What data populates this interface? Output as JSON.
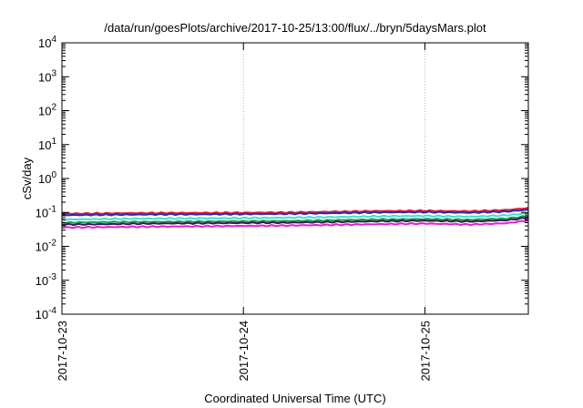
{
  "chart_data": {
    "type": "line",
    "title": "/data/run/goesPlots/archive/2017-10-25/13:00/flux/../bryn/5daysMars.plot",
    "xlabel": "Coordinated Universal Time (UTC)",
    "ylabel": "cSv/day",
    "yscale": "log",
    "ylim": [
      0.0001,
      10000
    ],
    "xlim": [
      0,
      2.57
    ],
    "x_ticks": [
      {
        "value": 0,
        "label": "2017-10-23"
      },
      {
        "value": 1,
        "label": "2017-10-24"
      },
      {
        "value": 2,
        "label": "2017-10-25"
      }
    ],
    "y_ticks": [
      {
        "value": 0.0001,
        "base": "10",
        "exp": "-4"
      },
      {
        "value": 0.001,
        "base": "10",
        "exp": "-3"
      },
      {
        "value": 0.01,
        "base": "10",
        "exp": "-2"
      },
      {
        "value": 0.1,
        "base": "10",
        "exp": "-1"
      },
      {
        "value": 1,
        "base": "10",
        "exp": "0"
      },
      {
        "value": 10,
        "base": "10",
        "exp": "1"
      },
      {
        "value": 100,
        "base": "10",
        "exp": "2"
      },
      {
        "value": 1000,
        "base": "10",
        "exp": "3"
      },
      {
        "value": 10000,
        "base": "10",
        "exp": "4"
      }
    ],
    "grid": true,
    "x": [
      0,
      0.25,
      0.5,
      0.75,
      1.0,
      1.25,
      1.5,
      1.75,
      2.0,
      2.25,
      2.45,
      2.57
    ],
    "series": [
      {
        "color": "#e8192c",
        "values": [
          0.092,
          0.094,
          0.096,
          0.097,
          0.098,
          0.1,
          0.105,
          0.11,
          0.112,
          0.108,
          0.118,
          0.135
        ]
      },
      {
        "color": "#2a2ab8",
        "values": [
          0.083,
          0.085,
          0.087,
          0.088,
          0.089,
          0.091,
          0.095,
          0.1,
          0.102,
          0.098,
          0.106,
          0.12
        ]
      },
      {
        "color": "#3ee0c8",
        "values": [
          0.062,
          0.064,
          0.066,
          0.067,
          0.068,
          0.07,
          0.073,
          0.077,
          0.079,
          0.075,
          0.082,
          0.095
        ]
      },
      {
        "color": "#1a9a5a",
        "values": [
          0.05,
          0.052,
          0.053,
          0.054,
          0.055,
          0.056,
          0.059,
          0.062,
          0.064,
          0.061,
          0.066,
          0.078
        ]
      },
      {
        "color": "#3a1a4a",
        "values": [
          0.044,
          0.045,
          0.047,
          0.048,
          0.049,
          0.05,
          0.052,
          0.055,
          0.057,
          0.054,
          0.059,
          0.07
        ]
      },
      {
        "color": "#e020d0",
        "values": [
          0.036,
          0.037,
          0.038,
          0.039,
          0.04,
          0.041,
          0.043,
          0.045,
          0.047,
          0.044,
          0.048,
          0.058
        ]
      }
    ]
  }
}
